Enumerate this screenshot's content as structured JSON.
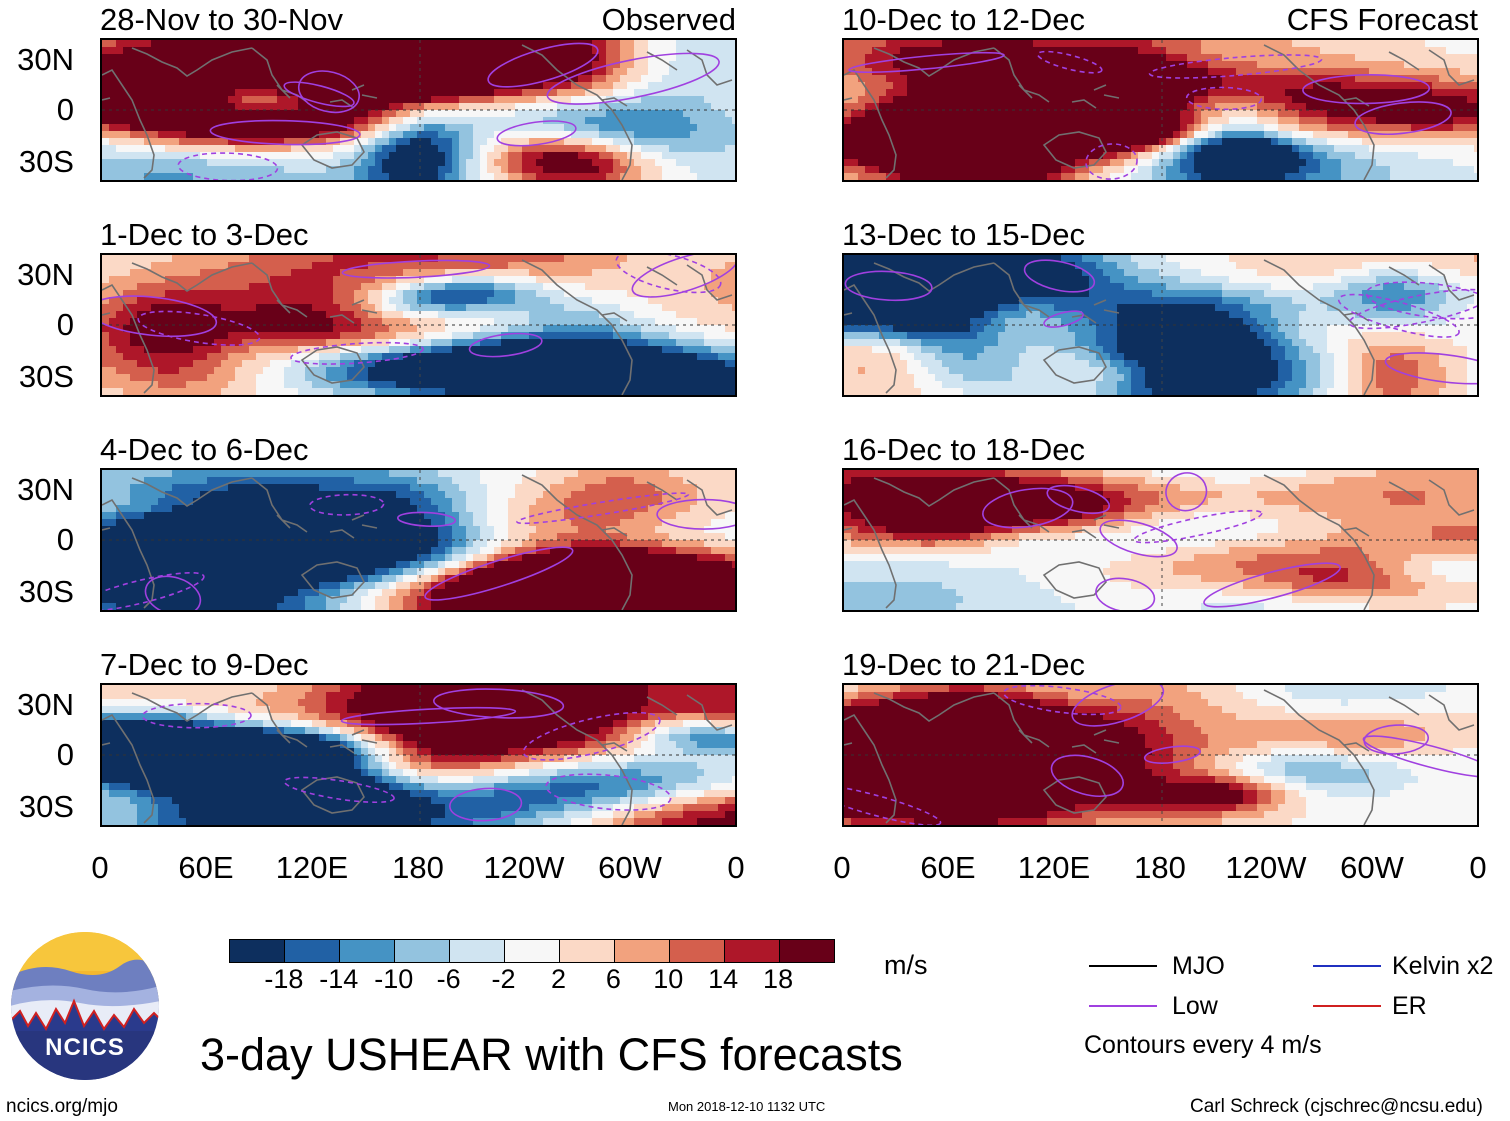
{
  "figure": {
    "title": "3-day USHEAR with CFS forecasts",
    "units": "m/s",
    "columns": [
      {
        "tag": "Observed",
        "panels": [
          "28-Nov to 30-Nov",
          "1-Dec to 3-Dec",
          "4-Dec to 6-Dec",
          "7-Dec to 9-Dec"
        ]
      },
      {
        "tag": "CFS Forecast",
        "panels": [
          "10-Dec to 12-Dec",
          "13-Dec to 15-Dec",
          "16-Dec to 18-Dec",
          "19-Dec to 21-Dec"
        ]
      }
    ],
    "colors": {
      "c0": "#0d2f5e",
      "c1": "#2161a5",
      "c2": "#4593c4",
      "c3": "#93c3df",
      "c4": "#d0e4f1",
      "c5": "#f7f7f7",
      "c6": "#fbd9c6",
      "c7": "#f2a27e",
      "c8": "#d45f4d",
      "c9": "#ae1729",
      "c10": "#680018",
      "coast": "#707070",
      "low_contour": "#a040e0",
      "kelvin": "#2030c0",
      "er": "#d02020",
      "mjo": "#000000"
    }
  },
  "chart_data": {
    "type": "heatmap",
    "variable": "USHEAR",
    "units": "m/s",
    "lat_ticks": [
      "30N",
      "0",
      "30S"
    ],
    "lon_ticks": [
      "0",
      "60E",
      "120E",
      "180",
      "120W",
      "60W",
      "0"
    ],
    "colorbar_ticks": [
      "-18",
      "-14",
      "-10",
      "-6",
      "-2",
      "2",
      "6",
      "10",
      "14",
      "18"
    ],
    "legend": [
      {
        "label": "MJO",
        "color": "#000000"
      },
      {
        "label": "Kelvin x2",
        "color": "#2030c0"
      },
      {
        "label": "Low",
        "color": "#a040e0"
      },
      {
        "label": "ER",
        "color": "#d02020"
      }
    ],
    "contour_note": "Contours every 4 m/s"
  },
  "footer": {
    "left": "ncics.org/mjo",
    "center": "Mon 2018-12-10 1132 UTC",
    "right": "Carl Schreck (cjschrec@ncsu.edu)",
    "logo_text": "NCICS"
  }
}
